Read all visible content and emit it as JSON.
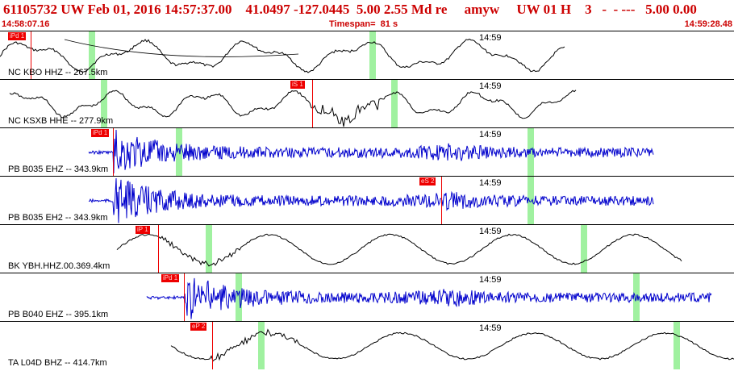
{
  "header": {
    "title": "61105732 UW Feb 01, 2016 14:57:37.00    41.0497 -127.0445  5.00 2.55 Md re     amyw     UW 01 H    3   -  - ---   5.00 0.00",
    "start_time": "14:58:07.16",
    "timespan": "Timespan=  81 s",
    "end_time": "14:59:28.48"
  },
  "traces": [
    {
      "label": "NC KBO HHZ -- 267.5km",
      "tick": "14:59",
      "pick": "iPd 1",
      "color": "#000000"
    },
    {
      "label": "NC KSXB HHE -- 277.9km",
      "tick": "14:59",
      "pick": "iS 1",
      "color": "#000000"
    },
    {
      "label": "PB B035 EHZ -- 343.9km",
      "tick": "14:59",
      "pick": "iPd 1",
      "color": "#0000cc"
    },
    {
      "label": "PB B035 EH2 -- 343.9km",
      "tick": "14:59",
      "pick": "eS 2",
      "color": "#0000cc"
    },
    {
      "label": "BK YBH.HHZ.00.369.4km",
      "tick": "14:59",
      "pick": "iP 1",
      "color": "#000000"
    },
    {
      "label": "PB B040 EHZ -- 395.1km",
      "tick": "14:59",
      "pick": "iPd 1",
      "color": "#0000cc"
    },
    {
      "label": "TA L04D BHZ -- 414.7km",
      "tick": "14:59",
      "pick": "eP 2",
      "color": "#000000"
    }
  ]
}
